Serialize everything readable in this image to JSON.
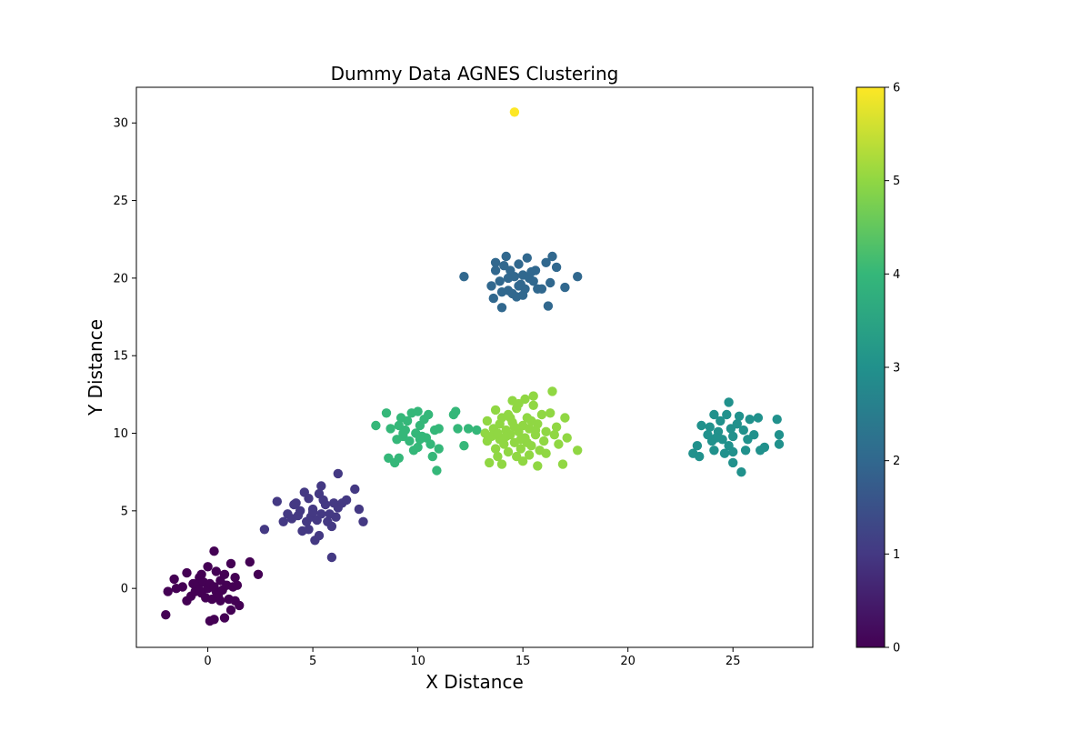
{
  "chart_data": {
    "type": "scatter",
    "title": "Dummy Data AGNES Clustering",
    "xlabel": "X Distance",
    "ylabel": "Y Distance",
    "xlim": [
      -3.4,
      28.8
    ],
    "ylim": [
      -3.8,
      32.3
    ],
    "xticks": [
      0,
      5,
      10,
      15,
      20,
      25
    ],
    "yticks": [
      0,
      5,
      10,
      15,
      20,
      25,
      30
    ],
    "grid": false,
    "colormap": "viridis",
    "colorbar": {
      "min": 0,
      "max": 6,
      "ticks": [
        0,
        1,
        2,
        3,
        4,
        5,
        6
      ]
    },
    "cluster_colors": [
      "#440154",
      "#443983",
      "#31688e",
      "#21918c",
      "#35b779",
      "#90d743",
      "#fde725"
    ],
    "clusters": [
      {
        "label": 0,
        "points": [
          [
            -2.0,
            -1.7
          ],
          [
            -1.9,
            -0.2
          ],
          [
            -1.6,
            0.6
          ],
          [
            -1.5,
            0.0
          ],
          [
            -1.2,
            0.1
          ],
          [
            -1.0,
            -0.8
          ],
          [
            -1.0,
            1.0
          ],
          [
            -0.8,
            -0.5
          ],
          [
            -0.7,
            0.3
          ],
          [
            -0.6,
            -0.2
          ],
          [
            -0.5,
            0.2
          ],
          [
            -0.4,
            0.7
          ],
          [
            -0.3,
            -0.3
          ],
          [
            -0.2,
            0.4
          ],
          [
            -0.1,
            -0.6
          ],
          [
            0.0,
            0.0
          ],
          [
            0.0,
            1.4
          ],
          [
            0.1,
            0.3
          ],
          [
            0.1,
            -2.1
          ],
          [
            0.2,
            -0.7
          ],
          [
            0.3,
            0.1
          ],
          [
            0.3,
            2.4
          ],
          [
            0.4,
            1.1
          ],
          [
            0.4,
            -0.2
          ],
          [
            0.5,
            -0.3
          ],
          [
            0.6,
            0.5
          ],
          [
            0.6,
            -0.8
          ],
          [
            0.7,
            -0.1
          ],
          [
            0.8,
            0.9
          ],
          [
            0.8,
            -1.9
          ],
          [
            0.9,
            0.2
          ],
          [
            1.0,
            -0.7
          ],
          [
            1.1,
            -1.4
          ],
          [
            1.1,
            1.6
          ],
          [
            1.2,
            0.1
          ],
          [
            1.3,
            -0.8
          ],
          [
            1.3,
            0.7
          ],
          [
            1.4,
            0.2
          ],
          [
            1.5,
            -1.1
          ],
          [
            2.0,
            1.7
          ],
          [
            2.4,
            0.9
          ],
          [
            0.3,
            -2.0
          ],
          [
            -0.3,
            0.9
          ],
          [
            0.5,
            -0.5
          ],
          [
            -0.4,
            -0.1
          ]
        ]
      },
      {
        "label": 1,
        "points": [
          [
            2.7,
            3.8
          ],
          [
            3.3,
            5.6
          ],
          [
            3.6,
            4.3
          ],
          [
            3.8,
            4.8
          ],
          [
            4.0,
            4.5
          ],
          [
            4.1,
            5.4
          ],
          [
            4.3,
            4.7
          ],
          [
            4.4,
            5.0
          ],
          [
            4.5,
            3.7
          ],
          [
            4.6,
            6.2
          ],
          [
            4.7,
            4.3
          ],
          [
            4.8,
            3.8
          ],
          [
            4.8,
            5.8
          ],
          [
            4.9,
            4.6
          ],
          [
            5.0,
            5.1
          ],
          [
            5.1,
            3.1
          ],
          [
            5.2,
            4.4
          ],
          [
            5.3,
            3.4
          ],
          [
            5.3,
            6.1
          ],
          [
            5.4,
            4.8
          ],
          [
            5.4,
            6.6
          ],
          [
            5.5,
            5.7
          ],
          [
            5.6,
            5.4
          ],
          [
            5.7,
            4.3
          ],
          [
            5.8,
            4.8
          ],
          [
            5.9,
            2.0
          ],
          [
            5.9,
            4.0
          ],
          [
            6.0,
            5.5
          ],
          [
            6.1,
            4.6
          ],
          [
            6.2,
            7.4
          ],
          [
            6.2,
            5.2
          ],
          [
            6.4,
            5.5
          ],
          [
            6.6,
            5.7
          ],
          [
            7.0,
            6.4
          ],
          [
            7.2,
            5.1
          ],
          [
            7.4,
            4.3
          ],
          [
            5.0,
            4.9
          ],
          [
            4.2,
            5.5
          ]
        ]
      },
      {
        "label": 2,
        "points": [
          [
            12.2,
            20.1
          ],
          [
            13.5,
            19.5
          ],
          [
            13.6,
            18.7
          ],
          [
            13.7,
            20.5
          ],
          [
            13.7,
            21.0
          ],
          [
            13.9,
            19.8
          ],
          [
            14.0,
            18.1
          ],
          [
            14.0,
            19.1
          ],
          [
            14.1,
            20.8
          ],
          [
            14.2,
            21.4
          ],
          [
            14.3,
            19.2
          ],
          [
            14.4,
            20.5
          ],
          [
            14.5,
            19.0
          ],
          [
            14.6,
            20.1
          ],
          [
            14.7,
            18.8
          ],
          [
            14.8,
            20.9
          ],
          [
            14.9,
            19.6
          ],
          [
            15.0,
            20.2
          ],
          [
            15.1,
            19.3
          ],
          [
            15.2,
            21.3
          ],
          [
            15.3,
            20.0
          ],
          [
            15.5,
            19.8
          ],
          [
            15.6,
            20.5
          ],
          [
            15.7,
            19.3
          ],
          [
            15.9,
            19.3
          ],
          [
            16.1,
            21.0
          ],
          [
            16.2,
            18.2
          ],
          [
            16.3,
            19.7
          ],
          [
            16.4,
            21.4
          ],
          [
            16.6,
            20.7
          ],
          [
            17.0,
            19.4
          ],
          [
            17.6,
            20.1
          ],
          [
            14.3,
            20.0
          ],
          [
            15.0,
            18.9
          ],
          [
            14.8,
            19.5
          ],
          [
            15.4,
            20.4
          ]
        ]
      },
      {
        "label": 3,
        "points": [
          [
            23.1,
            8.7
          ],
          [
            23.3,
            9.2
          ],
          [
            23.4,
            8.5
          ],
          [
            23.5,
            10.5
          ],
          [
            23.8,
            9.9
          ],
          [
            23.9,
            10.4
          ],
          [
            24.0,
            9.5
          ],
          [
            24.1,
            8.9
          ],
          [
            24.1,
            11.2
          ],
          [
            24.3,
            10.1
          ],
          [
            24.4,
            10.8
          ],
          [
            24.5,
            9.6
          ],
          [
            24.6,
            8.7
          ],
          [
            24.7,
            11.2
          ],
          [
            24.8,
            9.2
          ],
          [
            24.8,
            12.0
          ],
          [
            24.9,
            10.3
          ],
          [
            25.0,
            8.1
          ],
          [
            25.0,
            9.8
          ],
          [
            25.2,
            10.6
          ],
          [
            25.3,
            11.1
          ],
          [
            25.4,
            7.5
          ],
          [
            25.5,
            10.2
          ],
          [
            25.6,
            8.9
          ],
          [
            25.7,
            9.6
          ],
          [
            25.8,
            10.9
          ],
          [
            26.0,
            9.9
          ],
          [
            26.2,
            11.0
          ],
          [
            26.3,
            8.9
          ],
          [
            26.5,
            9.1
          ],
          [
            27.1,
            10.9
          ],
          [
            27.2,
            9.9
          ],
          [
            27.2,
            9.3
          ],
          [
            25.0,
            8.8
          ],
          [
            24.2,
            9.7
          ]
        ]
      },
      {
        "label": 4,
        "points": [
          [
            8.0,
            10.5
          ],
          [
            8.5,
            11.3
          ],
          [
            8.6,
            8.4
          ],
          [
            8.7,
            10.3
          ],
          [
            8.9,
            8.1
          ],
          [
            9.0,
            9.6
          ],
          [
            9.1,
            10.5
          ],
          [
            9.1,
            8.4
          ],
          [
            9.2,
            11.0
          ],
          [
            9.3,
            9.8
          ],
          [
            9.4,
            10.2
          ],
          [
            9.5,
            10.8
          ],
          [
            9.6,
            9.5
          ],
          [
            9.7,
            11.3
          ],
          [
            9.8,
            8.9
          ],
          [
            9.9,
            10.0
          ],
          [
            10.0,
            9.1
          ],
          [
            10.0,
            11.4
          ],
          [
            10.1,
            10.5
          ],
          [
            10.2,
            9.8
          ],
          [
            10.3,
            10.9
          ],
          [
            10.4,
            9.7
          ],
          [
            10.5,
            11.2
          ],
          [
            10.6,
            9.3
          ],
          [
            10.7,
            8.5
          ],
          [
            10.8,
            10.2
          ],
          [
            10.9,
            7.6
          ],
          [
            11.0,
            9.0
          ],
          [
            11.0,
            10.3
          ],
          [
            11.7,
            11.2
          ],
          [
            11.8,
            11.4
          ],
          [
            11.9,
            10.3
          ],
          [
            12.2,
            9.2
          ],
          [
            12.4,
            10.3
          ],
          [
            12.8,
            10.2
          ],
          [
            9.3,
            10.0
          ],
          [
            10.1,
            9.6
          ]
        ]
      },
      {
        "label": 5,
        "points": [
          [
            13.2,
            10.0
          ],
          [
            13.3,
            9.5
          ],
          [
            13.3,
            10.8
          ],
          [
            13.4,
            8.1
          ],
          [
            13.5,
            9.8
          ],
          [
            13.6,
            10.3
          ],
          [
            13.7,
            11.5
          ],
          [
            13.7,
            9.0
          ],
          [
            13.8,
            8.5
          ],
          [
            13.9,
            10.6
          ],
          [
            13.9,
            9.6
          ],
          [
            14.0,
            11.0
          ],
          [
            14.0,
            8.0
          ],
          [
            14.1,
            9.3
          ],
          [
            14.2,
            10.2
          ],
          [
            14.3,
            11.2
          ],
          [
            14.3,
            8.8
          ],
          [
            14.4,
            9.9
          ],
          [
            14.5,
            10.7
          ],
          [
            14.5,
            12.1
          ],
          [
            14.6,
            9.4
          ],
          [
            14.7,
            11.6
          ],
          [
            14.7,
            8.5
          ],
          [
            14.8,
            10.1
          ],
          [
            14.8,
            11.9
          ],
          [
            14.9,
            9.0
          ],
          [
            15.0,
            10.5
          ],
          [
            15.0,
            8.2
          ],
          [
            15.1,
            12.2
          ],
          [
            15.1,
            9.7
          ],
          [
            15.2,
            11.0
          ],
          [
            15.3,
            8.6
          ],
          [
            15.3,
            10.3
          ],
          [
            15.4,
            9.2
          ],
          [
            15.5,
            11.8
          ],
          [
            15.5,
            12.4
          ],
          [
            15.6,
            9.9
          ],
          [
            15.7,
            7.9
          ],
          [
            15.7,
            10.6
          ],
          [
            15.8,
            8.9
          ],
          [
            15.9,
            11.2
          ],
          [
            16.0,
            9.5
          ],
          [
            16.1,
            10.1
          ],
          [
            16.1,
            8.7
          ],
          [
            16.3,
            11.3
          ],
          [
            16.4,
            12.7
          ],
          [
            16.5,
            9.9
          ],
          [
            16.6,
            10.4
          ],
          [
            16.7,
            9.3
          ],
          [
            16.9,
            8.0
          ],
          [
            17.0,
            11.0
          ],
          [
            17.1,
            9.7
          ],
          [
            17.6,
            8.9
          ],
          [
            14.2,
            9.8
          ],
          [
            14.6,
            10.4
          ],
          [
            15.2,
            9.4
          ],
          [
            15.4,
            10.8
          ],
          [
            14.4,
            11.0
          ],
          [
            14.9,
            9.6
          ],
          [
            15.6,
            10.2
          ],
          [
            13.8,
            10.0
          ]
        ]
      },
      {
        "label": 6,
        "points": [
          [
            14.6,
            30.7
          ]
        ]
      }
    ]
  }
}
